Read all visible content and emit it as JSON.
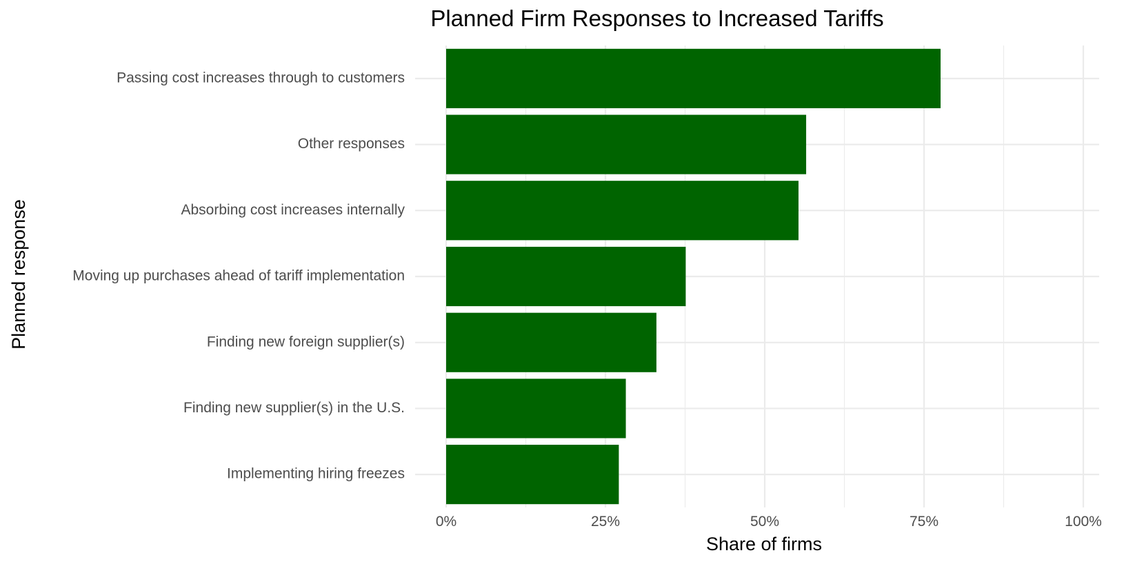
{
  "chart_data": {
    "type": "bar",
    "orientation": "horizontal",
    "title": "Planned Firm Responses to Increased Tariffs",
    "xlabel": "Share of firms",
    "ylabel": "Planned response",
    "xlim": [
      0,
      1
    ],
    "x_ticks": [
      0,
      0.25,
      0.5,
      0.75,
      1.0
    ],
    "x_tick_labels": [
      "0%",
      "25%",
      "50%",
      "75%",
      "100%"
    ],
    "grid": true,
    "legend": "none",
    "bar_color": "#006400",
    "categories": [
      "Passing cost increases through to customers",
      "Other responses",
      "Absorbing cost increases internally",
      "Moving up purchases ahead of tariff implementation",
      "Finding new foreign supplier(s)",
      "Finding new supplier(s) in the U.S.",
      "Implementing hiring freezes"
    ],
    "values": [
      0.776,
      0.565,
      0.553,
      0.376,
      0.33,
      0.282,
      0.271
    ]
  }
}
